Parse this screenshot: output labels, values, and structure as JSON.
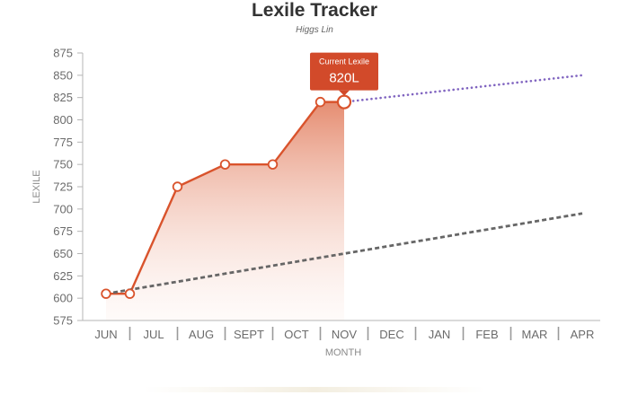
{
  "chart_data": {
    "type": "line",
    "title": "Lexile Tracker",
    "subtitle": "Higgs Lin",
    "xlabel": "MONTH",
    "ylabel": "LEXILE",
    "categories": [
      "JUN",
      "JUL",
      "AUG",
      "SEPT",
      "OCT",
      "NOV",
      "DEC",
      "JAN",
      "FEB",
      "MAR",
      "APR"
    ],
    "ylim": [
      575,
      875
    ],
    "yticks": [
      575,
      600,
      625,
      650,
      675,
      700,
      725,
      750,
      775,
      800,
      825,
      850,
      875
    ],
    "series": [
      {
        "style": "solid-with-fill",
        "color": "#d9532c",
        "points": [
          {
            "x": 0,
            "y": 605
          },
          {
            "x": 0.5,
            "y": 605
          },
          {
            "x": 1.5,
            "y": 725
          },
          {
            "x": 2.5,
            "y": 750
          },
          {
            "x": 3.5,
            "y": 750
          },
          {
            "x": 4.5,
            "y": 820
          },
          {
            "x": 5,
            "y": 820
          }
        ]
      },
      {
        "style": "dotted",
        "color": "#8064c0",
        "points": [
          {
            "x": 5,
            "y": 820
          },
          {
            "x": 10,
            "y": 850
          }
        ]
      },
      {
        "style": "dashed",
        "color": "#666666",
        "points": [
          {
            "x": 0,
            "y": 605
          },
          {
            "x": 10,
            "y": 695
          }
        ]
      }
    ],
    "annotation": {
      "title": "Current Lexile",
      "value": "820L",
      "x": 5,
      "y": 820,
      "color": "#d24a2a"
    },
    "grid": false,
    "legend": "none"
  }
}
